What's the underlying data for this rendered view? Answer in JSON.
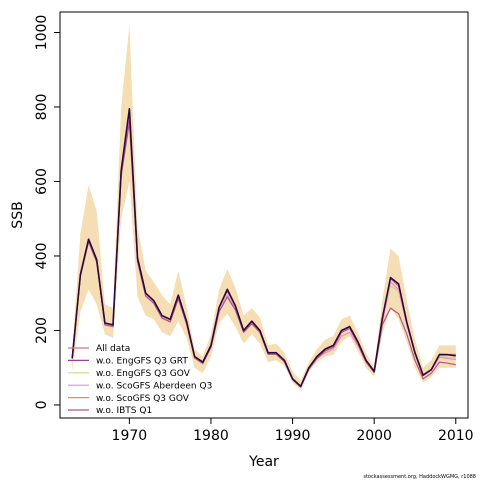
{
  "chart_data": {
    "type": "line",
    "xlabel": "Year",
    "ylabel": "SSB",
    "xlim": [
      1961.5,
      2011.5
    ],
    "ylim": [
      -35,
      1055
    ],
    "xticks": [
      1970,
      1980,
      1990,
      2000,
      2010
    ],
    "yticks": [
      0,
      200,
      400,
      600,
      800,
      1000
    ],
    "grid": false,
    "legend_position": "bottom-left",
    "credit": "stockassessment.org, HaddockWGMG, r1088",
    "band": {
      "color": "#F5DEB3",
      "x": [
        1963,
        1964,
        1965,
        1966,
        1967,
        1968,
        1969,
        1970,
        1971,
        1972,
        1973,
        1974,
        1975,
        1976,
        1977,
        1978,
        1979,
        1980,
        1981,
        1982,
        1983,
        1984,
        1985,
        1986,
        1987,
        1988,
        1989,
        1990,
        1991,
        1992,
        1993,
        1994,
        1995,
        1996,
        1997,
        1998,
        1999,
        2000,
        2001,
        2002,
        2003,
        2004,
        2005,
        2006,
        2007,
        2008,
        2009,
        2010
      ],
      "upper": [
        150,
        460,
        590,
        520,
        270,
        260,
        800,
        1020,
        480,
        360,
        330,
        295,
        270,
        360,
        265,
        150,
        130,
        190,
        310,
        365,
        315,
        240,
        260,
        235,
        160,
        165,
        140,
        90,
        65,
        115,
        150,
        175,
        185,
        230,
        240,
        195,
        140,
        100,
        280,
        420,
        400,
        280,
        175,
        100,
        120,
        160,
        160,
        160
      ],
      "lower": [
        90,
        250,
        310,
        270,
        190,
        180,
        500,
        600,
        290,
        240,
        230,
        195,
        185,
        225,
        180,
        100,
        85,
        130,
        220,
        245,
        210,
        165,
        190,
        165,
        115,
        120,
        105,
        60,
        40,
        90,
        115,
        130,
        135,
        170,
        185,
        145,
        100,
        75,
        190,
        260,
        230,
        170,
        100,
        60,
        75,
        100,
        100,
        100
      ]
    },
    "x": [
      1963,
      1964,
      1965,
      1966,
      1967,
      1968,
      1969,
      1970,
      1971,
      1972,
      1973,
      1974,
      1975,
      1976,
      1977,
      1978,
      1979,
      1980,
      1981,
      1982,
      1983,
      1984,
      1985,
      1986,
      1987,
      1988,
      1989,
      1990,
      1991,
      1992,
      1993,
      1994,
      1995,
      1996,
      1997,
      1998,
      1999,
      2000,
      2001,
      2002,
      2003,
      2004,
      2005,
      2006,
      2007,
      2008,
      2009,
      2010
    ],
    "series": [
      {
        "name": "All data",
        "color": "#D2788A",
        "values": [
          125,
          350,
          445,
          390,
          220,
          215,
          630,
          790,
          395,
          300,
          280,
          240,
          230,
          295,
          225,
          130,
          115,
          160,
          260,
          310,
          265,
          200,
          225,
          200,
          140,
          140,
          120,
          70,
          50,
          100,
          130,
          150,
          160,
          200,
          210,
          170,
          120,
          90,
          230,
          340,
          320,
          220,
          140,
          80,
          95,
          135,
          135,
          135
        ]
      },
      {
        "name": "w.o. EngGFS Q3 GRT",
        "color": "#9B3FA5",
        "values": [
          125,
          350,
          445,
          390,
          220,
          215,
          630,
          790,
          395,
          300,
          280,
          240,
          230,
          295,
          225,
          130,
          115,
          160,
          260,
          305,
          265,
          200,
          225,
          200,
          140,
          140,
          120,
          70,
          50,
          100,
          130,
          150,
          160,
          200,
          210,
          170,
          120,
          90,
          230,
          340,
          320,
          220,
          140,
          80,
          95,
          135,
          135,
          135
        ]
      },
      {
        "name": "w.o. EngGFS Q3 GOV",
        "color": "#C8D98F",
        "values": [
          125,
          350,
          440,
          385,
          218,
          212,
          625,
          780,
          392,
          298,
          278,
          238,
          228,
          292,
          222,
          128,
          113,
          158,
          255,
          300,
          260,
          198,
          222,
          198,
          138,
          138,
          118,
          69,
          49,
          98,
          128,
          148,
          158,
          198,
          207,
          168,
          118,
          89,
          225,
          320,
          305,
          215,
          135,
          78,
          92,
          130,
          128,
          125
        ]
      },
      {
        "name": "w.o. ScoGFS Aberdeen Q3",
        "color": "#F08CD0",
        "values": [
          125,
          348,
          440,
          385,
          216,
          210,
          620,
          770,
          390,
          295,
          276,
          236,
          226,
          290,
          220,
          127,
          112,
          157,
          252,
          295,
          258,
          196,
          220,
          196,
          137,
          137,
          117,
          68,
          48,
          97,
          125,
          140,
          150,
          185,
          195,
          160,
          115,
          88,
          220,
          330,
          310,
          215,
          138,
          79,
          93,
          128,
          125,
          122
        ]
      },
      {
        "name": "w.o. ScoGFS Q3 GOV",
        "color": "#F4826A",
        "values": [
          125,
          350,
          445,
          390,
          220,
          215,
          630,
          790,
          395,
          300,
          280,
          240,
          230,
          295,
          225,
          130,
          115,
          160,
          262,
          312,
          267,
          201,
          226,
          201,
          141,
          141,
          121,
          71,
          51,
          101,
          131,
          151,
          161,
          201,
          212,
          171,
          121,
          91,
          232,
          342,
          322,
          222,
          141,
          81,
          96,
          137,
          136,
          136
        ]
      },
      {
        "name": "w.o. IBTS Q1",
        "color": "#B5558C",
        "values": [
          125,
          345,
          438,
          383,
          215,
          210,
          615,
          760,
          385,
          292,
          273,
          233,
          223,
          285,
          218,
          126,
          111,
          155,
          250,
          290,
          255,
          195,
          218,
          195,
          136,
          136,
          116,
          68,
          48,
          96,
          125,
          145,
          155,
          195,
          205,
          165,
          116,
          87,
          215,
          260,
          245,
          190,
          120,
          70,
          85,
          115,
          112,
          108
        ]
      }
    ],
    "highlight_series": {
      "name": "",
      "color": "#2A0A3A",
      "values": [
        125,
        350,
        445,
        390,
        220,
        215,
        630,
        795,
        395,
        300,
        280,
        240,
        230,
        295,
        225,
        130,
        115,
        160,
        262,
        310,
        266,
        200,
        225,
        200,
        140,
        140,
        120,
        70,
        50,
        100,
        130,
        150,
        160,
        200,
        210,
        170,
        120,
        90,
        232,
        342,
        325,
        222,
        140,
        80,
        95,
        135,
        135,
        132
      ]
    }
  }
}
